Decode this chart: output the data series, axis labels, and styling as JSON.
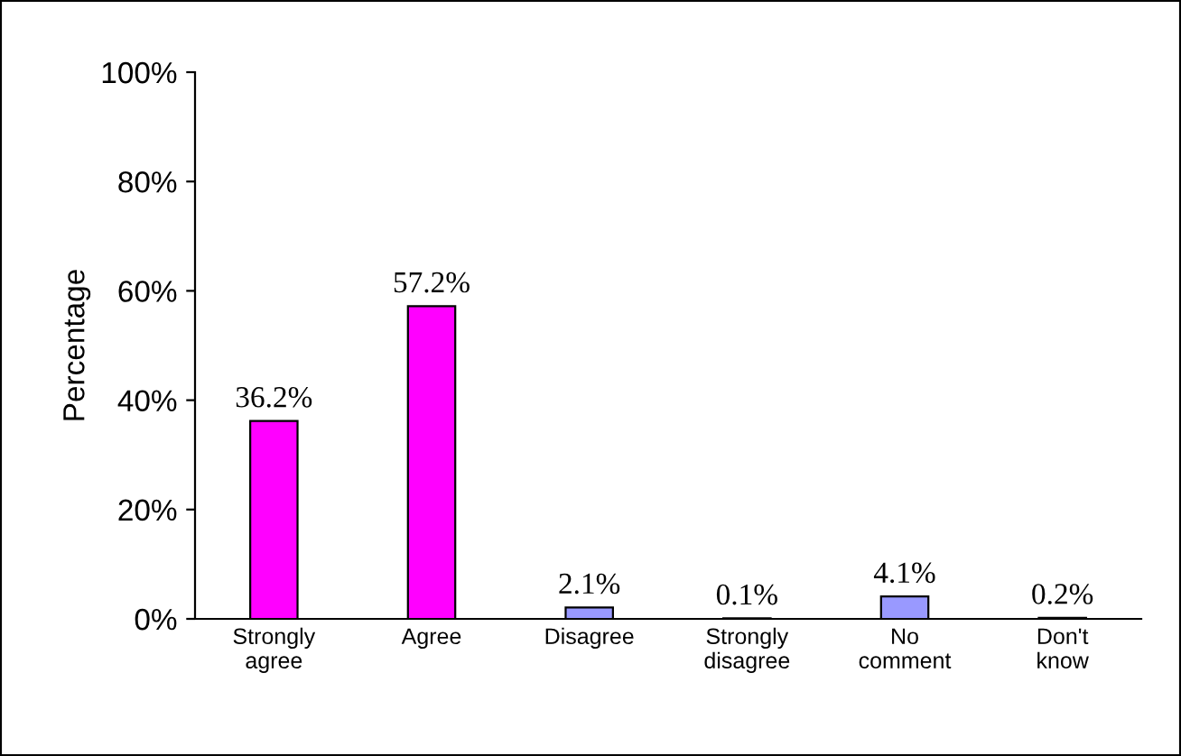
{
  "chart_data": {
    "type": "bar",
    "ylabel": "Percentage",
    "categories": [
      "Strongly\nagree",
      "Agree",
      "Disagree",
      "Strongly\ndisagree",
      "No\ncomment",
      "Don't\nknow"
    ],
    "values": [
      36.2,
      57.2,
      2.1,
      0.1,
      4.1,
      0.2
    ],
    "colors": [
      "#ff00ff",
      "#ff00ff",
      "#9999ff",
      "#9999ff",
      "#9999ff",
      "#9999ff"
    ],
    "value_labels": [
      "36.2%",
      "57.2%",
      "2.1%",
      "0.1%",
      "4.1%",
      "0.2%"
    ],
    "ylim": [
      0,
      100
    ],
    "yticks": [
      {
        "value": 0,
        "label": "0%"
      },
      {
        "value": 20,
        "label": "20%"
      },
      {
        "value": 40,
        "label": "40%"
      },
      {
        "value": 60,
        "label": "60%"
      },
      {
        "value": 80,
        "label": "80%"
      },
      {
        "value": 100,
        "label": "100%"
      }
    ],
    "grid": false,
    "legend": false
  }
}
